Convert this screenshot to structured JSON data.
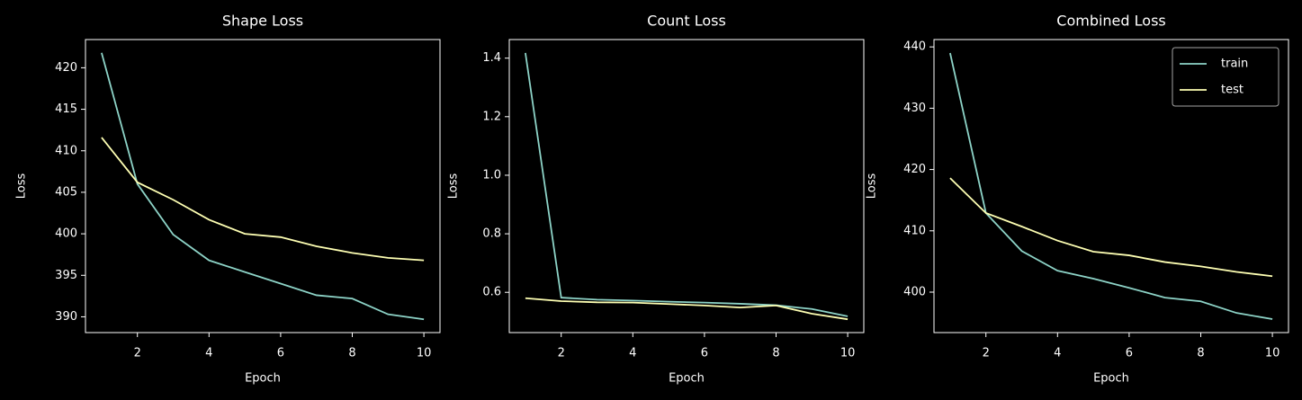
{
  "chart_data": [
    {
      "type": "line",
      "title": "Shape Loss",
      "x_label": "Epoch",
      "y_label": "Loss",
      "x": [
        1,
        2,
        3,
        4,
        5,
        6,
        7,
        8,
        9,
        10
      ],
      "series": [
        {
          "color": "#8dd3c7",
          "values": [
            421.8,
            406.0,
            399.9,
            396.8,
            395.4,
            394.0,
            392.6,
            392.2,
            390.3,
            389.7
          ]
        },
        {
          "color": "#feffb3",
          "values": [
            411.6,
            406.2,
            404.1,
            401.7,
            400.0,
            399.6,
            398.5,
            397.7,
            397.1,
            396.8
          ]
        }
      ],
      "xlim": [
        0.55,
        10.45
      ],
      "xticks": [
        2,
        4,
        6,
        8,
        10
      ],
      "ylim": [
        388.1,
        423.4
      ],
      "yticks": [
        390,
        395,
        400,
        405,
        410,
        415,
        420
      ]
    },
    {
      "type": "line",
      "title": "Count Loss",
      "x_label": "Epoch",
      "y_label": "Loss",
      "x": [
        1,
        2,
        3,
        4,
        5,
        6,
        7,
        8,
        9,
        10
      ],
      "series": [
        {
          "color": "#8dd3c7",
          "values": [
            1.418,
            0.582,
            0.575,
            0.572,
            0.568,
            0.565,
            0.561,
            0.556,
            0.543,
            0.518
          ]
        },
        {
          "color": "#feffb3",
          "values": [
            0.58,
            0.57,
            0.566,
            0.565,
            0.56,
            0.555,
            0.548,
            0.555,
            0.527,
            0.508
          ]
        }
      ],
      "xlim": [
        0.55,
        10.45
      ],
      "xticks": [
        2,
        4,
        6,
        8,
        10
      ],
      "ylim": [
        0.4625,
        1.4635
      ],
      "yticks": [
        0.6,
        0.8,
        {
          "value": 1,
          "label": "1.0"
        },
        1.2,
        1.4
      ]
    },
    {
      "type": "line",
      "title": "Combined Loss",
      "x_label": "Epoch",
      "y_label": "Loss",
      "x": [
        1,
        2,
        3,
        4,
        5,
        6,
        7,
        8,
        9,
        10
      ],
      "series": [
        {
          "name": "train",
          "color": "#8dd3c7",
          "values": [
            439.0,
            412.9,
            406.7,
            403.5,
            402.2,
            400.7,
            399.1,
            398.5,
            396.6,
            395.6
          ]
        },
        {
          "name": "test",
          "color": "#feffb3",
          "values": [
            418.6,
            412.9,
            410.7,
            408.4,
            406.6,
            406.0,
            404.9,
            404.2,
            403.3,
            402.6
          ]
        }
      ],
      "xlim": [
        0.55,
        10.45
      ],
      "xticks": [
        2,
        4,
        6,
        8,
        10
      ],
      "ylim": [
        393.4,
        441.2
      ],
      "yticks": [
        400,
        410,
        420,
        430,
        440
      ],
      "legend": "upper right"
    }
  ]
}
